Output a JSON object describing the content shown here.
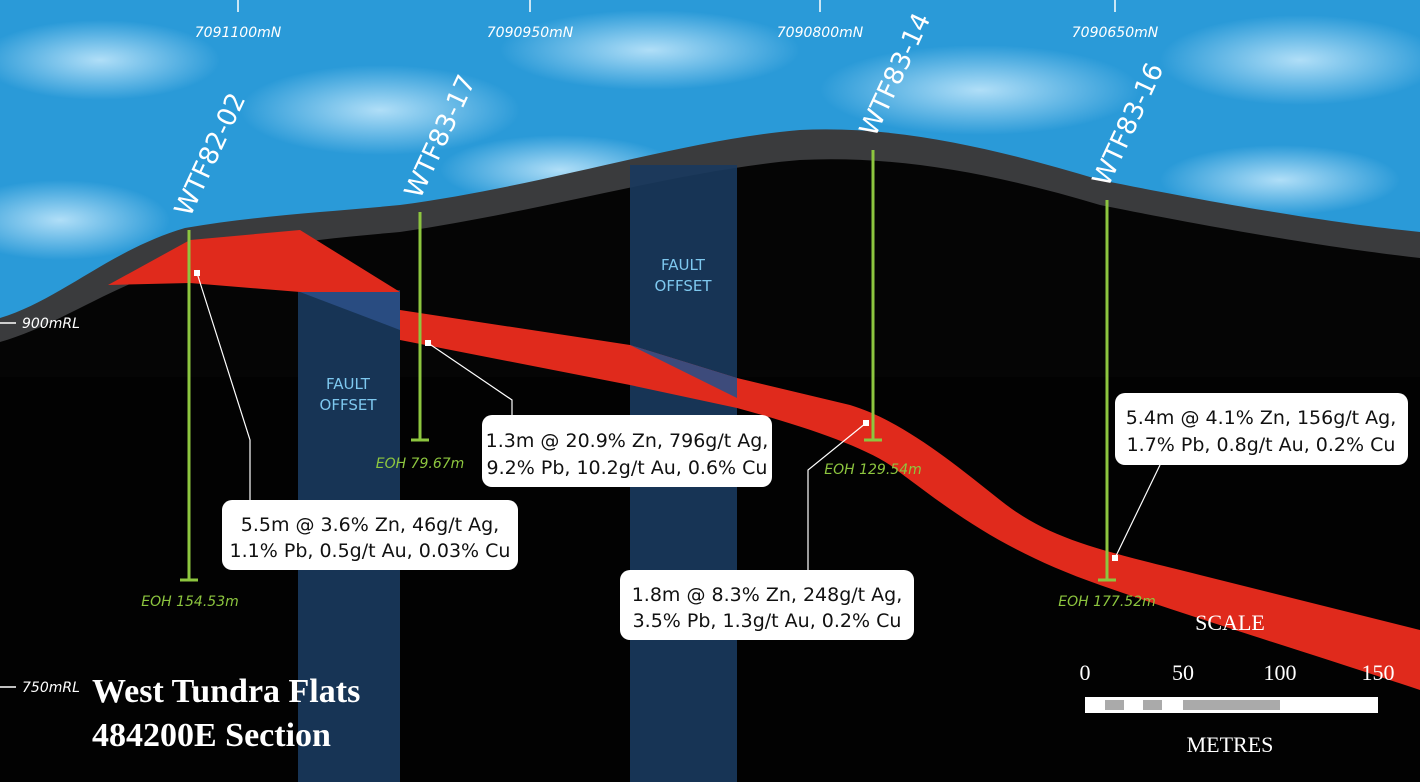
{
  "northings": [
    "7091100mN",
    "7090950mN",
    "7090800mN",
    "7090650mN"
  ],
  "elevations": [
    "900mRL",
    "750mRL"
  ],
  "holes": [
    {
      "name": "WTF82-02",
      "eoh": "EOH 154.53m"
    },
    {
      "name": "WTF83-17",
      "eoh": "EOH 79.67m"
    },
    {
      "name": "WTF83-14",
      "eoh": "EOH 129.54m"
    },
    {
      "name": "WTF83-16",
      "eoh": "EOH 177.52m"
    }
  ],
  "faults": [
    {
      "lines": [
        "FAULT",
        "OFFSET"
      ]
    },
    {
      "lines": [
        "FAULT",
        "OFFSET"
      ]
    }
  ],
  "intercepts": [
    {
      "lines": [
        "5.5m @ 3.6% Zn, 46g/t Ag,",
        "1.1% Pb, 0.5g/t Au, 0.03% Cu"
      ]
    },
    {
      "lines": [
        "1.3m @ 20.9% Zn, 796g/t Ag,",
        "9.2% Pb, 10.2g/t Au, 0.6% Cu"
      ]
    },
    {
      "lines": [
        "1.8m @ 8.3% Zn, 248g/t Ag,",
        "3.5% Pb, 1.3g/t Au, 0.2% Cu"
      ]
    },
    {
      "lines": [
        "5.4m @ 4.1% Zn, 156g/t Ag,",
        "1.7% Pb, 0.8g/t Au, 0.2% Cu"
      ]
    }
  ],
  "title": {
    "lines": [
      "West Tundra Flats",
      "484200E Section"
    ]
  },
  "scale": {
    "label": "SCALE",
    "ticks": [
      0,
      50,
      100,
      150
    ],
    "unit": "METRES"
  }
}
